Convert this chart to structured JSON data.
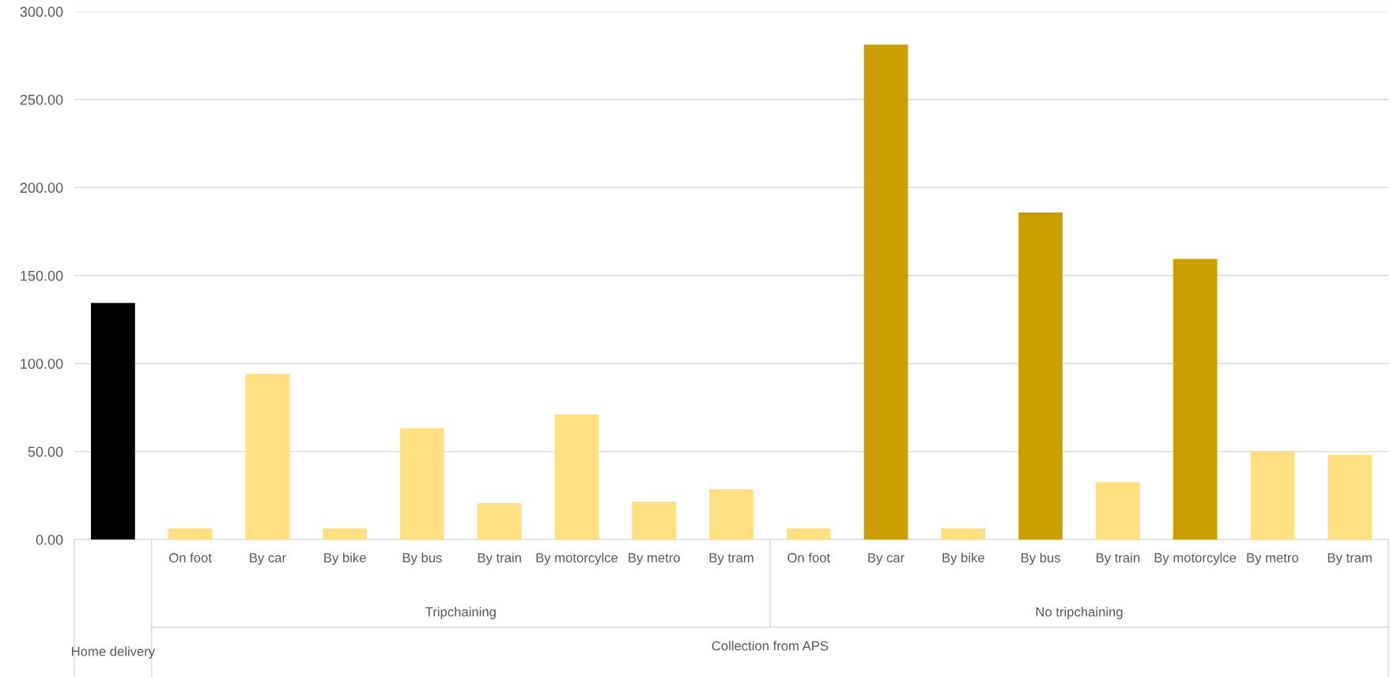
{
  "chart_data": {
    "type": "bar",
    "categories": [
      null,
      "On foot",
      "By car",
      "By bike",
      "By bus",
      "By train",
      "By motorcylce",
      "By metro",
      "By tram",
      "On foot",
      "By car",
      "By bike",
      "By bus",
      "By train",
      "By motorcylce",
      "By metro",
      "By tram"
    ],
    "values": [
      134.4,
      6.4,
      94.1,
      6.4,
      63.2,
      20.6,
      71.0,
      21.6,
      28.6,
      6.4,
      281.2,
      6.4,
      185.8,
      32.6,
      159.4,
      50.0,
      48.0
    ],
    "colors": [
      "#000000",
      "#ffdf7f",
      "#ffdf7f",
      "#ffdf7f",
      "#ffdf7f",
      "#ffdf7f",
      "#ffdf7f",
      "#ffdf7f",
      "#ffdf7f",
      "#ffdf7f",
      "#cc9f00",
      "#ffdf7f",
      "#cc9f00",
      "#ffdf7f",
      "#cc9f00",
      "#ffdf7f",
      "#ffdf7f"
    ],
    "ylim": [
      0,
      300
    ],
    "yticks": [
      {
        "value": 0,
        "label": "0.00"
      },
      {
        "value": 50,
        "label": "50.00"
      },
      {
        "value": 100,
        "label": "100.00"
      },
      {
        "value": 150,
        "label": "150.00"
      },
      {
        "value": 200,
        "label": "200.00"
      },
      {
        "value": 250,
        "label": "250.00"
      },
      {
        "value": 300,
        "label": "300.00"
      }
    ],
    "grid": "y",
    "annotations": [
      "Tripchaining",
      "No tripchaining",
      "Home delivery",
      "Collection from APS"
    ]
  }
}
